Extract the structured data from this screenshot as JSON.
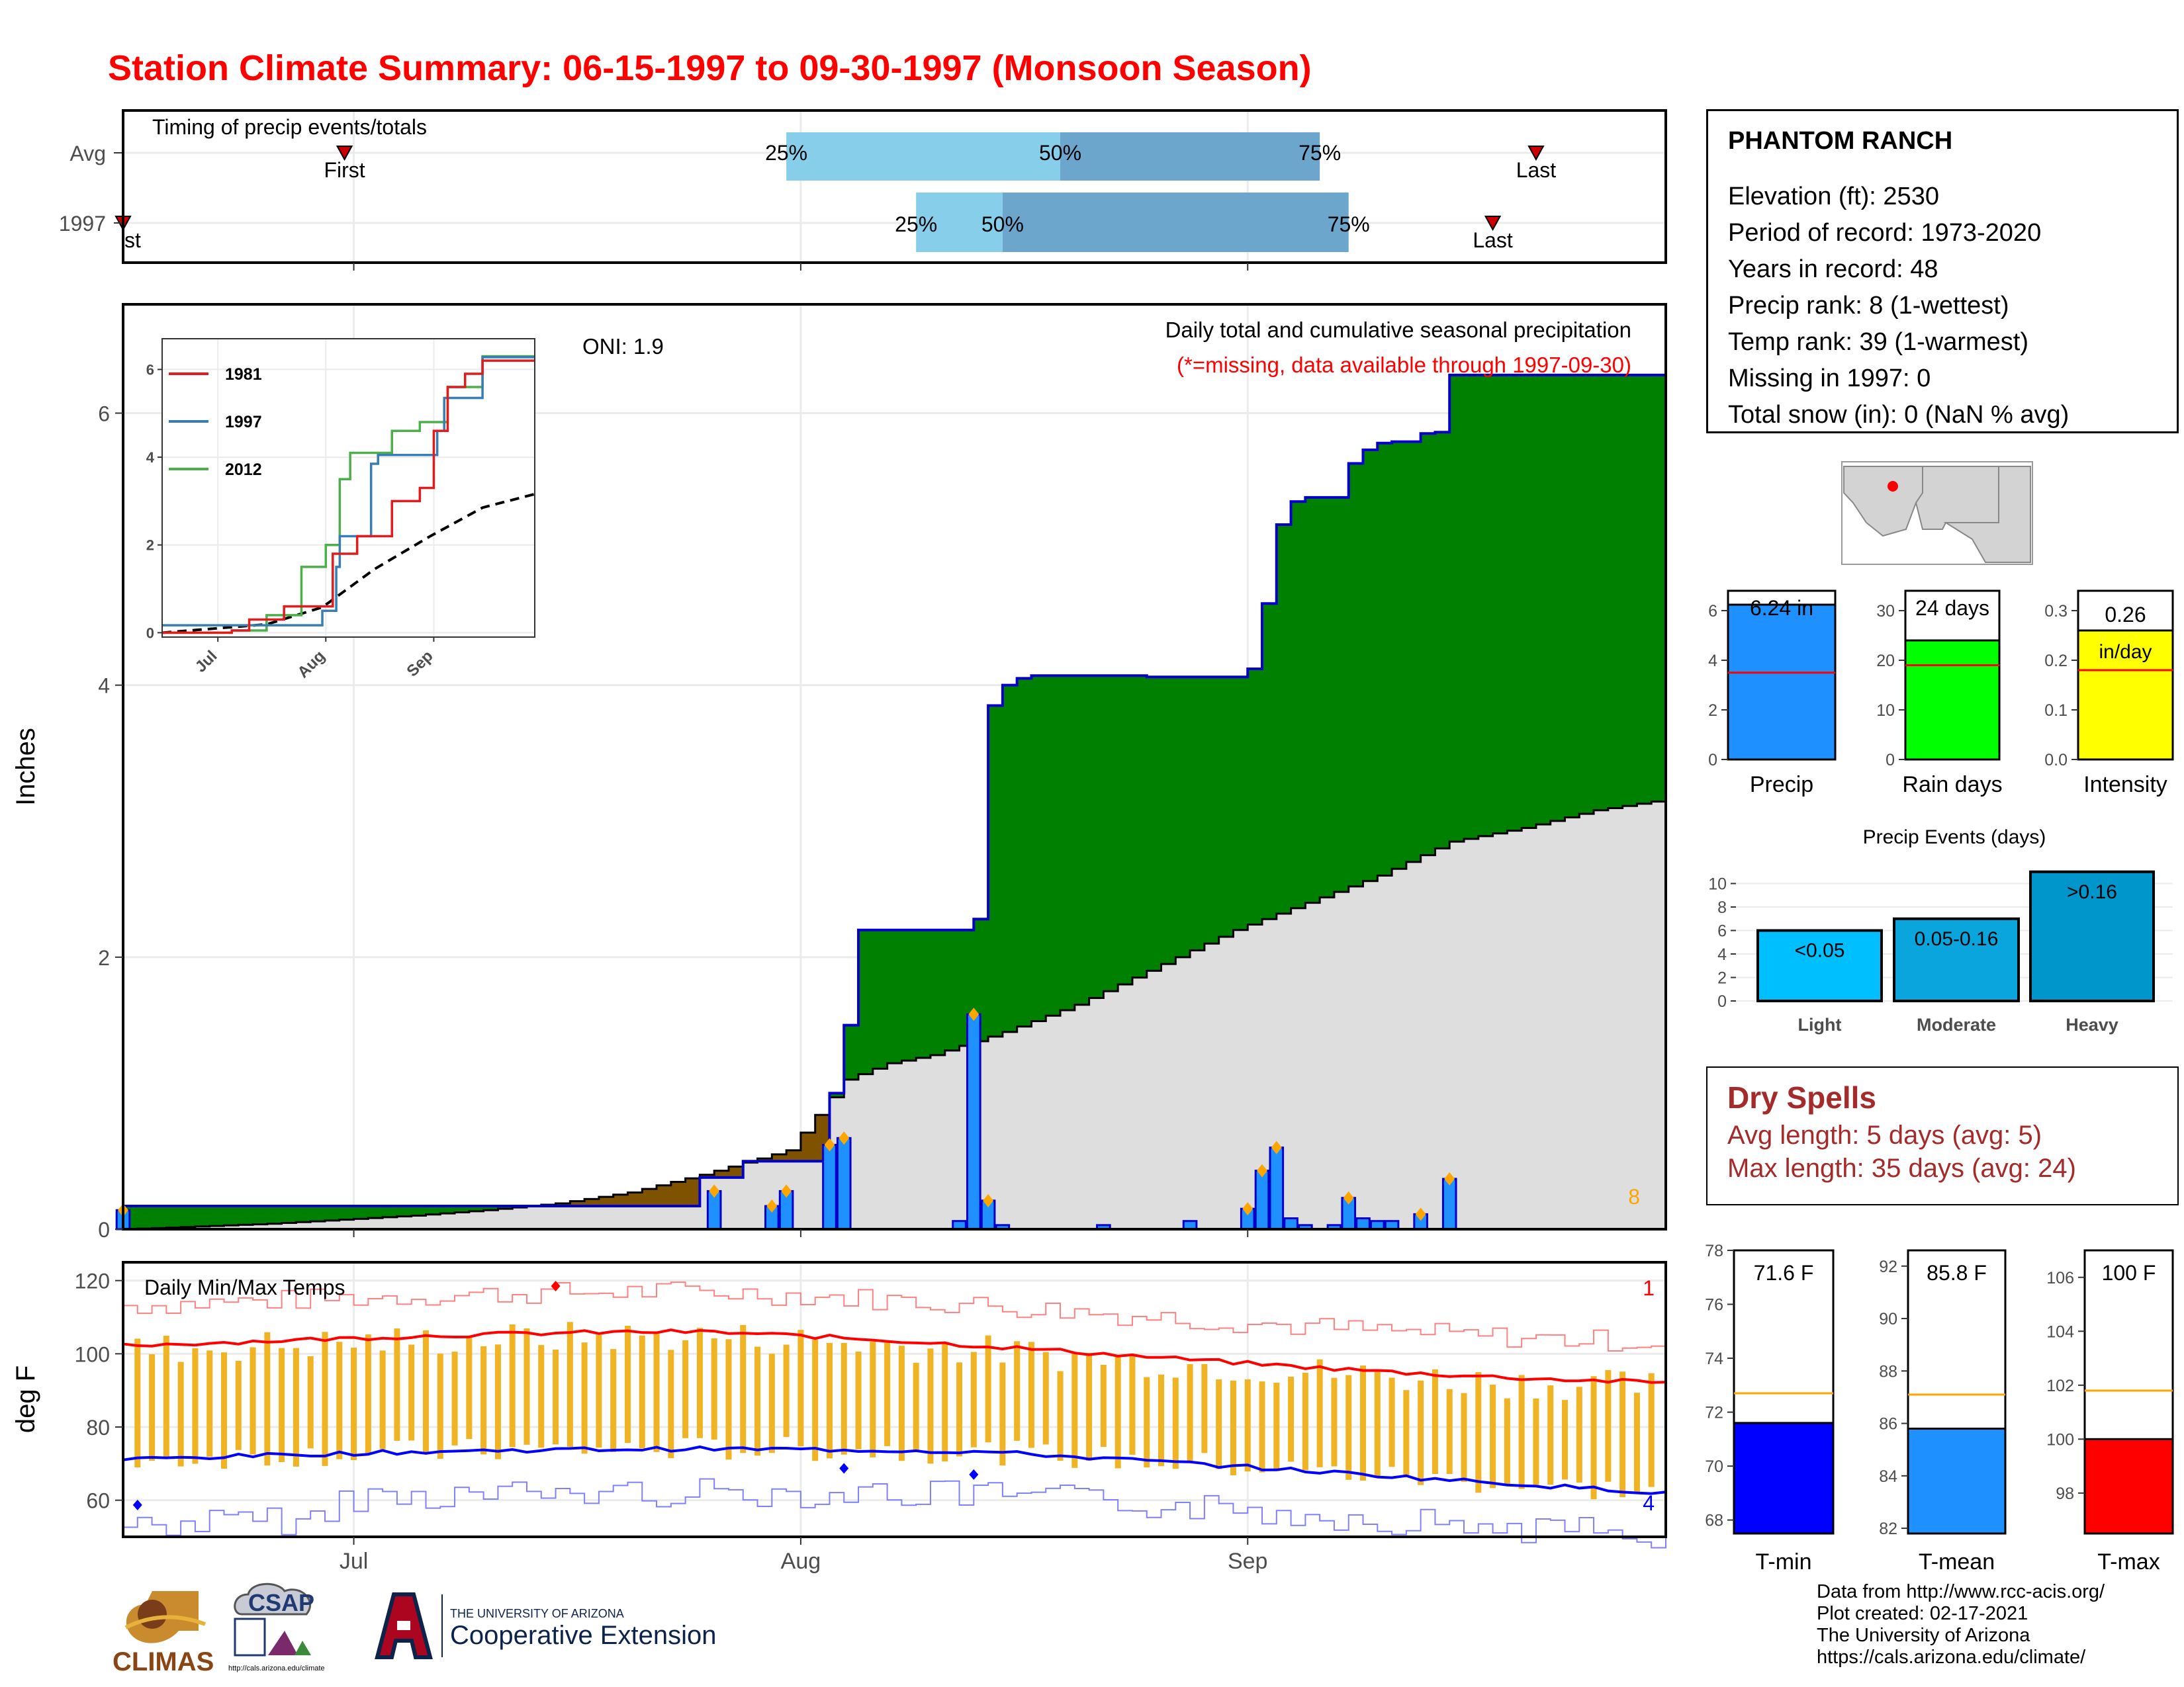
{
  "title": "Station Climate Summary: 06-15-1997 to 09-30-1997 (Monsoon Season)",
  "timing": {
    "title": "Timing of precip events/totals",
    "rows": [
      "Avg",
      "1997"
    ],
    "avg": {
      "first": "First",
      "last": "Last",
      "p25": "25%",
      "p50": "50%",
      "p75": "75%"
    },
    "y1997": {
      "first": "First",
      "last": "Last",
      "p25": "25%",
      "p50": "50%",
      "p75": "75%"
    }
  },
  "station": {
    "name": "PHANTOM RANCH",
    "lines": [
      "Elevation (ft): 2530",
      "Period of record: 1973-2020",
      "Years in record: 48",
      "Precip rank: 8 (1-wettest)",
      "Temp rank: 39 (1-warmest)",
      "Missing in 1997: 0",
      "Total snow (in): 0 (NaN % avg)"
    ]
  },
  "dry_spells": {
    "title": "Dry Spells",
    "avg_length": "Avg length: 5 days (avg: 5)",
    "max_length": "Max length: 35 days (avg: 24)"
  },
  "credits": [
    "Data from http://www.rcc-acis.org/",
    "Plot created: 02-17-2021",
    "The University of Arizona",
    "https://cals.arizona.edu/climate/"
  ],
  "logos": {
    "climas": "CLIMAS",
    "csap": "CSAP",
    "csap_url": "http://cals.arizona.edu/climate",
    "ua_small": "THE UNIVERSITY OF ARIZONA",
    "ua_big": "Cooperative Extension"
  },
  "colors": {
    "title": "#ff0000",
    "this_year": "#008000",
    "deficit": "#7f5200",
    "avg_fill": "#dedede",
    "daily_bar": "#1e90ff",
    "tmax": "#ff0000",
    "tmin": "#0000ff",
    "range_bar": "#f0b323",
    "dry": "#a52a2a"
  },
  "chart_data": [
    {
      "id": "precip",
      "type": "area",
      "title": "Daily total and cumulative seasonal precipitation",
      "subtitle": "(*=missing, data available through 1997-09-30)",
      "ylabel": "Inches",
      "ylim": [
        0,
        6.8
      ],
      "yticks": [
        0,
        2,
        4,
        6
      ],
      "x_ticks": [
        "Jul",
        "Aug",
        "Sep"
      ],
      "oni": "ONI: 1.9",
      "rank_label": "8",
      "cumulative_1997": [
        [
          "06-15",
          0.17
        ],
        [
          "07-24",
          0.17
        ],
        [
          "07-25",
          0.38
        ],
        [
          "07-28",
          0.5
        ],
        [
          "07-31",
          0.5
        ],
        [
          "08-01",
          0.5
        ],
        [
          "08-03",
          1.0
        ],
        [
          "08-04",
          1.5
        ],
        [
          "08-05",
          2.2
        ],
        [
          "08-13",
          2.28
        ],
        [
          "08-14",
          3.85
        ],
        [
          "08-15",
          4.0
        ],
        [
          "08-16",
          4.05
        ],
        [
          "08-17",
          4.07
        ],
        [
          "08-24",
          4.07
        ],
        [
          "08-25",
          4.06
        ],
        [
          "09-01",
          4.12
        ],
        [
          "09-02",
          4.6
        ],
        [
          "09-03",
          5.18
        ],
        [
          "09-04",
          5.35
        ],
        [
          "09-05",
          5.38
        ],
        [
          "09-07",
          5.38
        ],
        [
          "09-08",
          5.63
        ],
        [
          "09-09",
          5.73
        ],
        [
          "09-10",
          5.78
        ],
        [
          "09-11",
          5.79
        ],
        [
          "09-13",
          5.85
        ],
        [
          "09-14",
          5.86
        ],
        [
          "09-15",
          6.28
        ],
        [
          "09-30",
          6.26
        ]
      ],
      "cumulative_avg": [
        [
          "06-15",
          0.0
        ],
        [
          "06-20",
          0.02
        ],
        [
          "06-25",
          0.04
        ],
        [
          "06-30",
          0.07
        ],
        [
          "07-05",
          0.1
        ],
        [
          "07-10",
          0.14
        ],
        [
          "07-15",
          0.19
        ],
        [
          "07-20",
          0.27
        ],
        [
          "07-25",
          0.4
        ],
        [
          "07-31",
          0.58
        ],
        [
          "08-04",
          1.1
        ],
        [
          "08-07",
          1.22
        ],
        [
          "08-10",
          1.28
        ],
        [
          "08-15",
          1.45
        ],
        [
          "08-20",
          1.65
        ],
        [
          "08-25",
          1.9
        ],
        [
          "08-31",
          2.2
        ],
        [
          "09-05",
          2.4
        ],
        [
          "09-10",
          2.6
        ],
        [
          "09-15",
          2.85
        ],
        [
          "09-20",
          2.95
        ],
        [
          "09-25",
          3.08
        ],
        [
          "09-30",
          3.16
        ]
      ],
      "daily_1997": [
        [
          "06-15",
          0.14
        ],
        [
          "07-26",
          0.28
        ],
        [
          "07-30",
          0.17
        ],
        [
          "07-31",
          0.28
        ],
        [
          "08-03",
          0.62
        ],
        [
          "08-04",
          0.67
        ],
        [
          "08-12",
          0.06
        ],
        [
          "08-13",
          1.58
        ],
        [
          "08-14",
          0.21
        ],
        [
          "08-15",
          0.03
        ],
        [
          "08-22",
          0.03
        ],
        [
          "08-28",
          0.06
        ],
        [
          "09-01",
          0.15
        ],
        [
          "09-02",
          0.43
        ],
        [
          "09-03",
          0.6
        ],
        [
          "09-04",
          0.08
        ],
        [
          "09-05",
          0.03
        ],
        [
          "09-07",
          0.03
        ],
        [
          "09-08",
          0.23
        ],
        [
          "09-09",
          0.08
        ],
        [
          "09-10",
          0.06
        ],
        [
          "09-11",
          0.06
        ],
        [
          "09-13",
          0.11
        ],
        [
          "09-15",
          0.37
        ]
      ],
      "inset": {
        "type": "line",
        "series": [
          {
            "name": "1981"
          },
          {
            "name": "1997"
          },
          {
            "name": "2012"
          }
        ],
        "yticks": [
          0,
          2,
          4,
          6
        ],
        "x_ticks": [
          "Jul",
          "Aug",
          "Sep"
        ],
        "values_1981": [
          [
            "06-15",
            0.0
          ],
          [
            "07-05",
            0.05
          ],
          [
            "07-10",
            0.3
          ],
          [
            "07-20",
            0.6
          ],
          [
            "08-01",
            0.6
          ],
          [
            "08-03",
            1.8
          ],
          [
            "08-10",
            2.2
          ],
          [
            "08-20",
            3.0
          ],
          [
            "08-28",
            3.3
          ],
          [
            "09-01",
            4.6
          ],
          [
            "09-05",
            5.6
          ],
          [
            "09-10",
            5.9
          ],
          [
            "09-15",
            6.2
          ],
          [
            "09-30",
            6.2
          ]
        ],
        "values_1997": [
          [
            "06-15",
            0.17
          ],
          [
            "07-24",
            0.17
          ],
          [
            "07-31",
            0.5
          ],
          [
            "08-04",
            1.5
          ],
          [
            "08-05",
            2.2
          ],
          [
            "08-14",
            3.85
          ],
          [
            "08-16",
            4.05
          ],
          [
            "09-02",
            4.6
          ],
          [
            "09-04",
            5.35
          ],
          [
            "09-15",
            6.28
          ],
          [
            "09-30",
            6.28
          ]
        ],
        "values_2012": [
          [
            "06-15",
            0.0
          ],
          [
            "07-05",
            0.05
          ],
          [
            "07-15",
            0.4
          ],
          [
            "07-25",
            1.5
          ],
          [
            "08-01",
            2.0
          ],
          [
            "08-05",
            3.5
          ],
          [
            "08-08",
            4.1
          ],
          [
            "08-20",
            4.6
          ],
          [
            "08-28",
            4.8
          ],
          [
            "09-05",
            5.6
          ],
          [
            "09-15",
            6.3
          ],
          [
            "09-30",
            6.3
          ]
        ],
        "values_avg": [
          [
            "06-15",
            0.0
          ],
          [
            "07-15",
            0.19
          ],
          [
            "07-31",
            0.58
          ],
          [
            "08-15",
            1.45
          ],
          [
            "08-31",
            2.2
          ],
          [
            "09-15",
            2.85
          ],
          [
            "09-30",
            3.16
          ]
        ]
      }
    },
    {
      "id": "temps",
      "type": "line",
      "title": "Daily Min/Max Temps",
      "ylabel": "deg F",
      "ylim": [
        50,
        125
      ],
      "yticks": [
        60,
        80,
        100,
        120
      ],
      "x_ticks": [
        "Jul",
        "Aug",
        "Sep"
      ],
      "rank_max": "1",
      "rank_min": "4"
    },
    {
      "id": "season_bars",
      "type": "bar",
      "panels": [
        {
          "category": "Precip",
          "value": 6.24,
          "label": "6.24 in",
          "avg": 3.5,
          "ylim": [
            0,
            6.8
          ],
          "yticks": [
            0,
            2,
            4,
            6
          ],
          "color": "#1e90ff"
        },
        {
          "category": "Rain days",
          "value": 24,
          "label": "24 days",
          "avg": 19,
          "ylim": [
            0,
            34
          ],
          "yticks": [
            0,
            10,
            20,
            30
          ],
          "color": "#00ff00"
        },
        {
          "category": "Intensity",
          "value": 0.26,
          "label": "0.26",
          "unit": "in/day",
          "avg": 0.18,
          "ylim": [
            0,
            0.34
          ],
          "yticks": [
            0.0,
            0.1,
            0.2,
            0.3
          ],
          "color": "#ffff00"
        }
      ]
    },
    {
      "id": "precip_events",
      "type": "bar",
      "title": "Precip Events (days)",
      "categories": [
        "Light",
        "Moderate",
        "Heavy"
      ],
      "values": [
        6,
        7,
        11
      ],
      "bar_labels": [
        "<0.05",
        "0.05-0.16",
        ">0.16"
      ],
      "ylim": [
        0,
        12
      ],
      "yticks": [
        0,
        2,
        4,
        6,
        8,
        10
      ]
    },
    {
      "id": "temp_bars",
      "type": "bar",
      "panels": [
        {
          "category": "T-min",
          "value": 71.6,
          "label": "71.6 F",
          "avg": 72.7,
          "ylim": [
            67.5,
            78.0
          ],
          "yticks": [
            68,
            70,
            72,
            74,
            76,
            78
          ],
          "color": "#0000ff"
        },
        {
          "category": "T-mean",
          "value": 85.8,
          "label": "85.8 F",
          "avg": 87.1,
          "ylim": [
            81.8,
            92.6
          ],
          "yticks": [
            82,
            84,
            86,
            88,
            90,
            92
          ],
          "color": "#1e90ff"
        },
        {
          "category": "T-max",
          "value": 100,
          "label": "100 F",
          "avg": 101.8,
          "ylim": [
            96.5,
            107.0
          ],
          "yticks": [
            98,
            100,
            102,
            104,
            106
          ],
          "color": "#ff0000"
        }
      ]
    }
  ]
}
